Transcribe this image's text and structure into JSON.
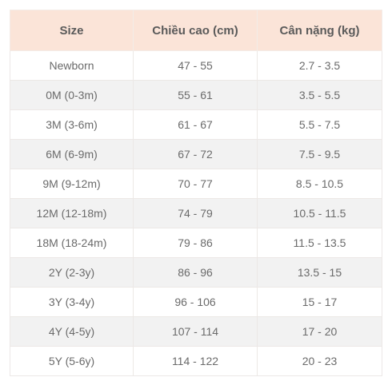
{
  "table": {
    "headers": [
      "Size",
      "Chiều cao (cm)",
      "Cân nặng (kg)"
    ],
    "rows": [
      [
        "Newborn",
        "47 - 55",
        "2.7 - 3.5"
      ],
      [
        "0M (0-3m)",
        "55 - 61",
        "3.5 - 5.5"
      ],
      [
        "3M (3-6m)",
        "61 - 67",
        "5.5 - 7.5"
      ],
      [
        "6M (6-9m)",
        "67 - 72",
        "7.5 - 9.5"
      ],
      [
        "9M (9-12m)",
        "70 - 77",
        "8.5 - 10.5"
      ],
      [
        "12M (12-18m)",
        "74 - 79",
        "10.5 - 11.5"
      ],
      [
        "18M (18-24m)",
        "79 - 86",
        "11.5 - 13.5"
      ],
      [
        "2Y (2-3y)",
        "86 - 96",
        "13.5 - 15"
      ],
      [
        "3Y (3-4y)",
        "96 - 106",
        "15 - 17"
      ],
      [
        "4Y (4-5y)",
        "107 - 114",
        "17 - 20"
      ],
      [
        "5Y (5-6y)",
        "114 - 122",
        "20 - 23"
      ]
    ]
  },
  "colors": {
    "header_background": "#fbe4d8",
    "alternate_row_background": "#f2f2f2",
    "text": "#6a6a6a"
  }
}
